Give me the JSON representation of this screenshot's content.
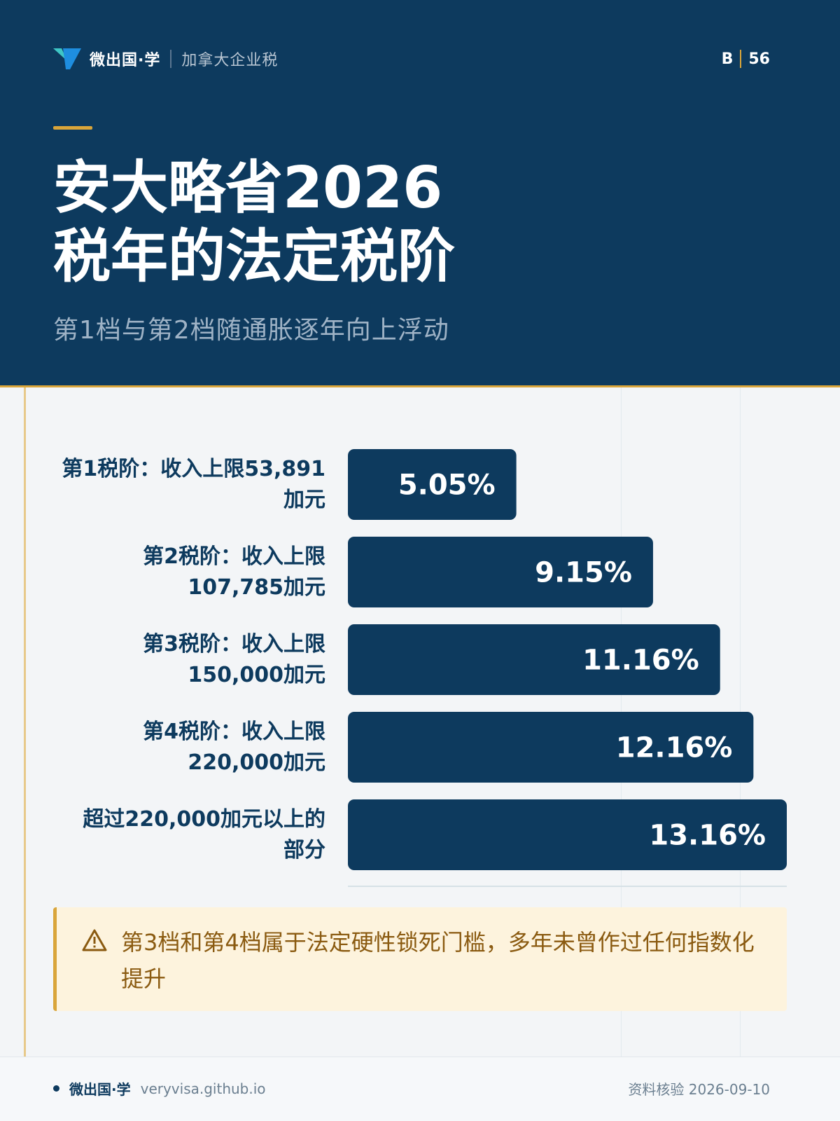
{
  "brand": {
    "name": "微出国·学",
    "section": "加拿大企业税",
    "colors": {
      "navy": "#0d3a5e",
      "gold": "#d9a53a",
      "teal": "#3ec6c6",
      "blue": "#1e8ee0"
    }
  },
  "page_tag": {
    "letter": "B",
    "number": "56"
  },
  "header": {
    "title_line1": "安大略省2026",
    "title_line2": "税年的法定税阶",
    "subtitle": "第1档与第2档随通胀逐年向上浮动"
  },
  "chart_data": {
    "type": "bar",
    "orientation": "horizontal",
    "title": "安大略省2026税年的法定税阶",
    "subtitle": "第1档与第2档随通胀逐年向上浮动",
    "categories": [
      [
        "第1税阶：收入上限53,891",
        "加元"
      ],
      [
        "第2税阶：收入上限",
        "107,785加元"
      ],
      [
        "第3税阶：收入上限",
        "150,000加元"
      ],
      [
        "第4税阶：收入上限",
        "220,000加元"
      ],
      [
        "超过220,000加元以上的",
        "部分"
      ]
    ],
    "values": [
      5.05,
      9.15,
      11.16,
      12.16,
      13.16
    ],
    "value_labels": [
      "5.05%",
      "9.15%",
      "11.16%",
      "12.16%",
      "13.16%"
    ],
    "unit": "%",
    "xlim": [
      0,
      13.16
    ],
    "grid": false,
    "bar_color": "#0d3a5e"
  },
  "note": {
    "icon": "warning-icon",
    "text": "第3档和第4档属于法定硬性锁死门槛，多年未曾作过任何指数化提升"
  },
  "footer": {
    "brand": "微出国·学",
    "url": "veryvisa.github.io",
    "verified": "资料核验 2026-09-10"
  }
}
